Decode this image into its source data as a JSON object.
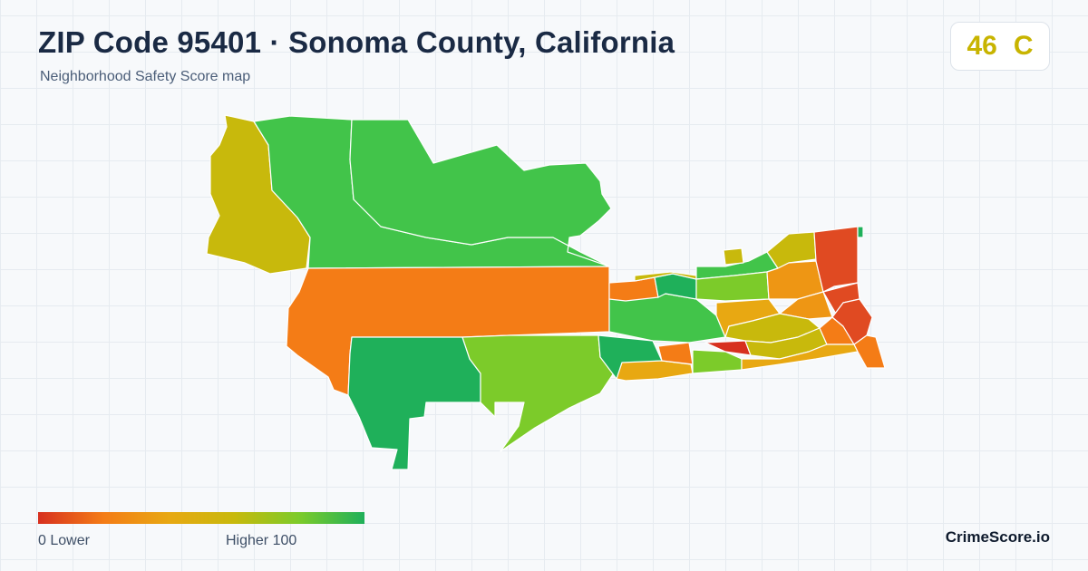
{
  "header": {
    "title": "ZIP Code 95401 · Sonoma County, California",
    "subtitle": "Neighborhood Safety Score map"
  },
  "score": {
    "value": "46",
    "grade": "C",
    "color": "#c8b400"
  },
  "legend": {
    "min_label": "0  Lower",
    "max_label": "Higher  100",
    "gradient": [
      "#d7301f",
      "#f47c16",
      "#e8a812",
      "#c8b90c",
      "#7ccb2a",
      "#1fb05a"
    ]
  },
  "brand": "CrimeScore.io",
  "colors": {
    "red": "#e04a22",
    "red_dark": "#d7301f",
    "orange": "#f47c16",
    "orange_amber": "#ee9614",
    "amber": "#e8a812",
    "olive": "#c8b90c",
    "yellow_green": "#a8c41a",
    "light_green": "#7ccb2a",
    "green": "#42c44a",
    "dark_green": "#1fb05a"
  }
}
